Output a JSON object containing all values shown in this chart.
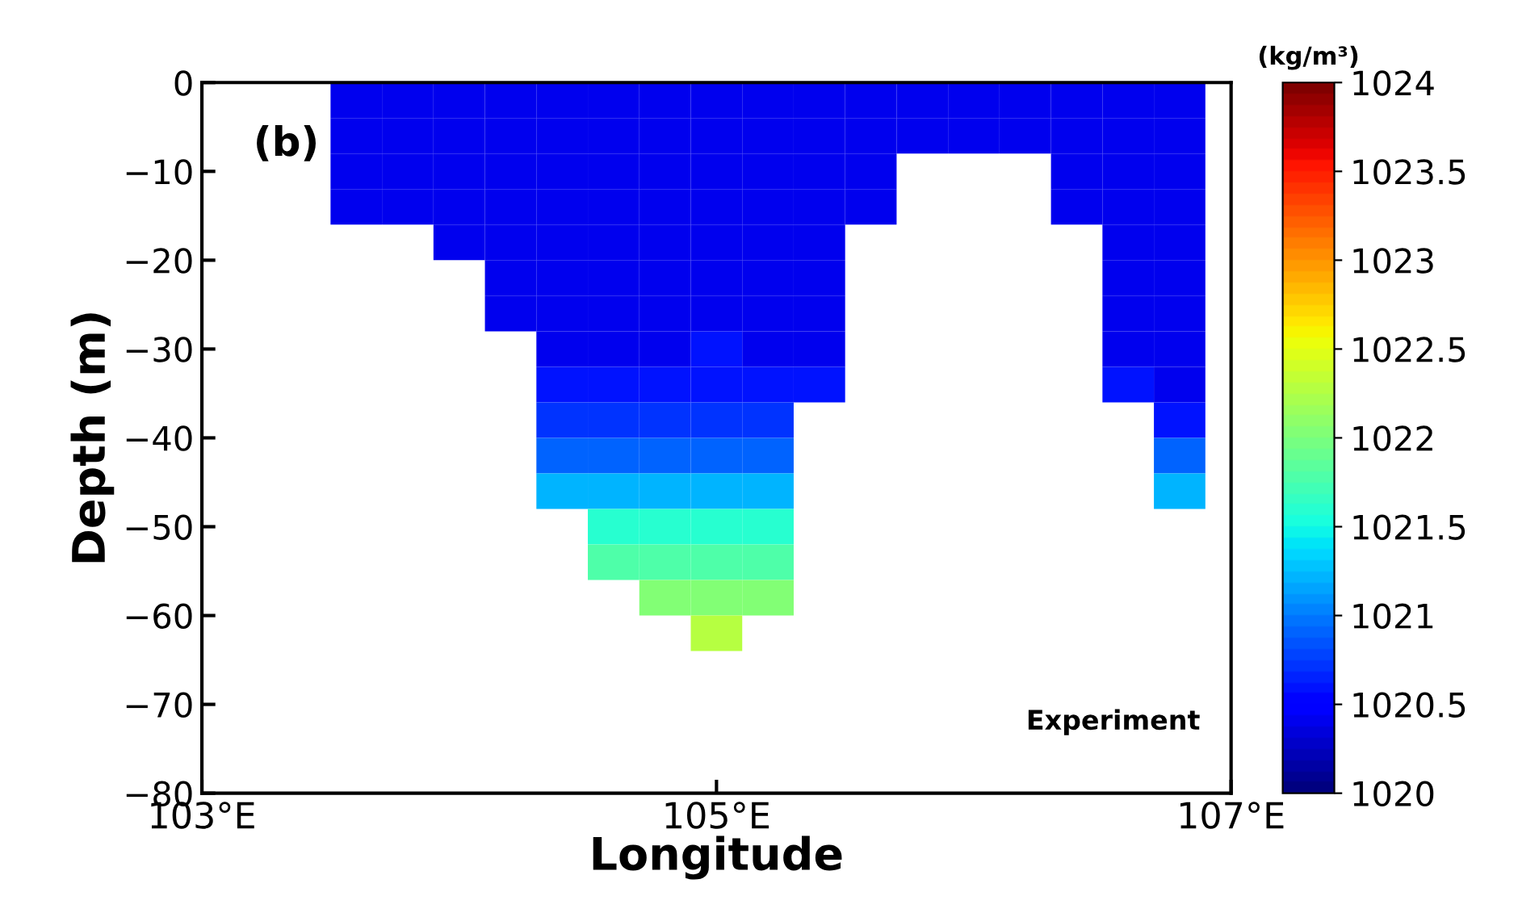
{
  "chart_data": {
    "type": "heatmap",
    "xlabel": "Longitude",
    "ylabel": "Depth (m)",
    "clabel": "(kg/m³)",
    "annotations": [
      "(b)",
      "Experiment"
    ],
    "x": [
      103.6,
      103.8,
      104.0,
      104.2,
      104.4,
      104.6,
      104.8,
      105.0,
      105.2,
      105.4,
      105.6,
      105.8,
      106.0,
      106.2,
      106.4,
      106.6,
      106.8
    ],
    "y": [
      -2,
      -6,
      -10,
      -14,
      -18,
      -22,
      -26,
      -30,
      -34,
      -38,
      -42,
      -46,
      -50,
      -54,
      -58,
      -62
    ],
    "xlim": [
      103,
      107
    ],
    "xticks": [
      {
        "value": 103,
        "label": "103°E"
      },
      {
        "value": 105,
        "label": "105°E"
      },
      {
        "value": 107,
        "label": "107°E"
      }
    ],
    "ylim": [
      -80,
      0
    ],
    "yticks": [
      {
        "value": -80,
        "label": "−80"
      },
      {
        "value": -70,
        "label": "−70"
      },
      {
        "value": -60,
        "label": "−60"
      },
      {
        "value": -50,
        "label": "−50"
      },
      {
        "value": -40,
        "label": "−40"
      },
      {
        "value": -30,
        "label": "−30"
      },
      {
        "value": -20,
        "label": "−20"
      },
      {
        "value": -10,
        "label": "−10"
      },
      {
        "value": 0,
        "label": "0"
      }
    ],
    "clim": [
      1020,
      1024
    ],
    "cticks": [
      1020,
      1020.5,
      1021,
      1021.5,
      1022,
      1022.5,
      1023,
      1023.5,
      1024
    ],
    "cells": [
      [
        1020.4,
        1020.4,
        1020.4,
        1020.4,
        1020.4,
        1020.4,
        1020.4,
        1020.4,
        1020.4,
        1020.4,
        1020.4,
        1020.4,
        1020.4,
        1020.4,
        1020.4,
        1020.4,
        1020.4
      ],
      [
        1020.4,
        1020.4,
        1020.4,
        1020.4,
        1020.4,
        1020.4,
        1020.4,
        1020.4,
        1020.4,
        1020.4,
        1020.4,
        1020.4,
        1020.4,
        1020.4,
        1020.4,
        1020.4,
        1020.4
      ],
      [
        1020.4,
        1020.4,
        1020.4,
        1020.4,
        1020.4,
        1020.4,
        1020.4,
        1020.4,
        1020.4,
        1020.4,
        1020.4,
        null,
        null,
        null,
        1020.4,
        1020.4,
        1020.4
      ],
      [
        1020.4,
        1020.4,
        1020.4,
        1020.4,
        1020.4,
        1020.4,
        1020.4,
        1020.4,
        1020.4,
        1020.4,
        1020.4,
        null,
        null,
        null,
        1020.4,
        1020.4,
        1020.4
      ],
      [
        null,
        null,
        1020.4,
        1020.4,
        1020.4,
        1020.4,
        1020.4,
        1020.4,
        1020.4,
        1020.4,
        null,
        null,
        null,
        null,
        null,
        1020.4,
        1020.4
      ],
      [
        null,
        null,
        null,
        1020.4,
        1020.4,
        1020.4,
        1020.4,
        1020.4,
        1020.4,
        1020.4,
        null,
        null,
        null,
        null,
        null,
        1020.4,
        1020.4
      ],
      [
        null,
        null,
        null,
        1020.4,
        1020.4,
        1020.4,
        1020.4,
        1020.4,
        1020.4,
        1020.4,
        null,
        null,
        null,
        null,
        null,
        1020.4,
        1020.4
      ],
      [
        null,
        null,
        null,
        null,
        1020.4,
        1020.4,
        1020.4,
        1020.6,
        1020.4,
        1020.4,
        null,
        null,
        null,
        null,
        null,
        1020.4,
        1020.4
      ],
      [
        null,
        null,
        null,
        null,
        1020.6,
        1020.6,
        1020.6,
        1020.6,
        1020.6,
        1020.6,
        null,
        null,
        null,
        null,
        null,
        1020.6,
        1020.4
      ],
      [
        null,
        null,
        null,
        null,
        1020.7,
        1020.7,
        1020.7,
        1020.7,
        1020.7,
        null,
        null,
        null,
        null,
        null,
        null,
        null,
        1020.6
      ],
      [
        null,
        null,
        null,
        null,
        1020.9,
        1020.9,
        1020.9,
        1020.9,
        1020.9,
        null,
        null,
        null,
        null,
        null,
        null,
        null,
        1020.9
      ],
      [
        null,
        null,
        null,
        null,
        1021.2,
        1021.2,
        1021.2,
        1021.2,
        1021.2,
        null,
        null,
        null,
        null,
        null,
        null,
        null,
        1021.2
      ],
      [
        null,
        null,
        null,
        null,
        null,
        1021.6,
        1021.6,
        1021.6,
        1021.6,
        null,
        null,
        null,
        null,
        null,
        null,
        null,
        null
      ],
      [
        null,
        null,
        null,
        null,
        null,
        1021.8,
        1021.8,
        1021.8,
        1021.8,
        null,
        null,
        null,
        null,
        null,
        null,
        null,
        null
      ],
      [
        null,
        null,
        null,
        null,
        null,
        null,
        1022.0,
        1022.0,
        1022.0,
        null,
        null,
        null,
        null,
        null,
        null,
        null,
        null
      ],
      [
        null,
        null,
        null,
        null,
        null,
        null,
        null,
        1022.3,
        null,
        null,
        null,
        null,
        null,
        null,
        null,
        null,
        null
      ]
    ]
  }
}
